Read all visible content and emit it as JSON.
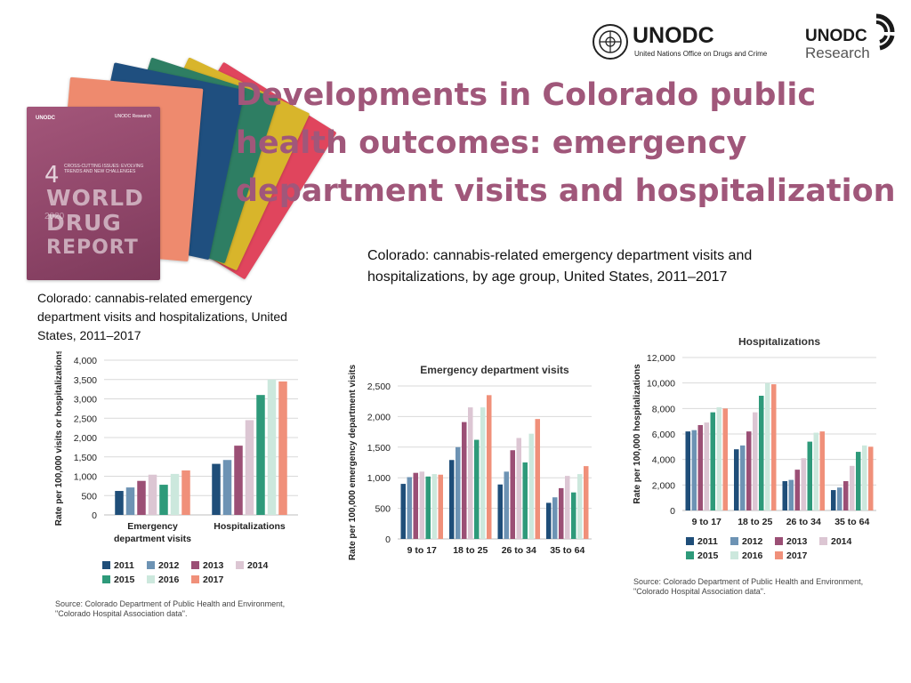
{
  "title": "Developments in Colorado public health outcomes: emergency department visits and hospitalization",
  "logos": {
    "unodc_name": "UNODC",
    "unodc_subtitle": "United Nations Office on Drugs and Crime",
    "research_name": "UNODC",
    "research_sub": "Research"
  },
  "report_cover": {
    "logo_left": "UNODC",
    "logo_right": "UNODC Research",
    "number": "4",
    "subtitle": "CROSS-CUTTING ISSUES: EVOLVING TRENDS AND NEW CHALLENGES",
    "line1": "WORLD",
    "line2": "DRUG",
    "line3": "REPORT",
    "year": "2020"
  },
  "caption_left": "Colorado: cannabis-related emergency department visits and hospitalizations, United States, 2011–2017",
  "caption_right": "Colorado: cannabis-related emergency department visits and hospitalizations, by age group, United States, 2011–2017",
  "source_left": "Source: Colorado Department of Public Health and Environment, \"Colorado Hospital Association data\".",
  "source_right": "Source: Colorado Department of Public Health and Environment, \"Colorado Hospital Association data\".",
  "colors": {
    "2011": "#1f4e79",
    "2012": "#6d93b4",
    "2013": "#9b4f75",
    "2014": "#dcc6d3",
    "2015": "#2e9a7a",
    "2016": "#cce8dd",
    "2017": "#f0907a",
    "title": "#a0577a"
  },
  "chart_data": [
    {
      "type": "bar",
      "title": "",
      "xlabel": "",
      "ylabel": "Rate per 100,000 visits or hospitalizations",
      "ylim": [
        0,
        4000
      ],
      "yticks": [
        "4,000",
        "3,500",
        "3,000",
        "2,500",
        "2,000",
        "1,500",
        "1,000",
        "500",
        "0"
      ],
      "categories": [
        "Emergency department visits",
        "Hospitalizations"
      ],
      "category_lines": [
        [
          "Emergency",
          "department visits"
        ],
        [
          "Hospitalizations"
        ]
      ],
      "series": [
        {
          "name": "2011",
          "values": [
            620,
            1320
          ]
        },
        {
          "name": "2012",
          "values": [
            710,
            1420
          ]
        },
        {
          "name": "2013",
          "values": [
            880,
            1790
          ]
        },
        {
          "name": "2014",
          "values": [
            1040,
            2450
          ]
        },
        {
          "name": "2015",
          "values": [
            780,
            3100
          ]
        },
        {
          "name": "2016",
          "values": [
            1060,
            3500
          ]
        },
        {
          "name": "2017",
          "values": [
            1150,
            3450
          ]
        }
      ]
    },
    {
      "type": "bar",
      "title": "Emergency department visits",
      "xlabel": "",
      "ylabel": "Rate per 100,000 emergency department visits",
      "ylim": [
        0,
        2500
      ],
      "yticks": [
        "2,500",
        "2,000",
        "1,500",
        "1,000",
        "500",
        "0"
      ],
      "categories": [
        "9 to 17",
        "18 to 25",
        "26 to 34",
        "35 to 64"
      ],
      "series": [
        {
          "name": "2011",
          "values": [
            900,
            1290,
            890,
            590
          ]
        },
        {
          "name": "2012",
          "values": [
            1010,
            1500,
            1100,
            680
          ]
        },
        {
          "name": "2013",
          "values": [
            1080,
            1910,
            1450,
            830
          ]
        },
        {
          "name": "2014",
          "values": [
            1100,
            2150,
            1650,
            1030
          ]
        },
        {
          "name": "2015",
          "values": [
            1020,
            1620,
            1250,
            760
          ]
        },
        {
          "name": "2016",
          "values": [
            1060,
            2150,
            1720,
            1060
          ]
        },
        {
          "name": "2017",
          "values": [
            1050,
            2350,
            1960,
            1190
          ]
        }
      ]
    },
    {
      "type": "bar",
      "title": "Hospitalizations",
      "xlabel": "",
      "ylabel": "Rate per 100,000 hospitalizations",
      "ylim": [
        0,
        12000
      ],
      "yticks": [
        "12,000",
        "10,000",
        "8,000",
        "6,000",
        "4,000",
        "2,000",
        "0"
      ],
      "categories": [
        "9 to 17",
        "18 to 25",
        "26 to 34",
        "35 to 64"
      ],
      "series": [
        {
          "name": "2011",
          "values": [
            6200,
            4800,
            2300,
            1600
          ]
        },
        {
          "name": "2012",
          "values": [
            6300,
            5100,
            2400,
            1800
          ]
        },
        {
          "name": "2013",
          "values": [
            6700,
            6200,
            3200,
            2300
          ]
        },
        {
          "name": "2014",
          "values": [
            6900,
            7700,
            4100,
            3500
          ]
        },
        {
          "name": "2015",
          "values": [
            7700,
            9000,
            5400,
            4600
          ]
        },
        {
          "name": "2016",
          "values": [
            8100,
            10000,
            6100,
            5100
          ]
        },
        {
          "name": "2017",
          "values": [
            8000,
            9900,
            6200,
            5000
          ]
        }
      ]
    }
  ]
}
